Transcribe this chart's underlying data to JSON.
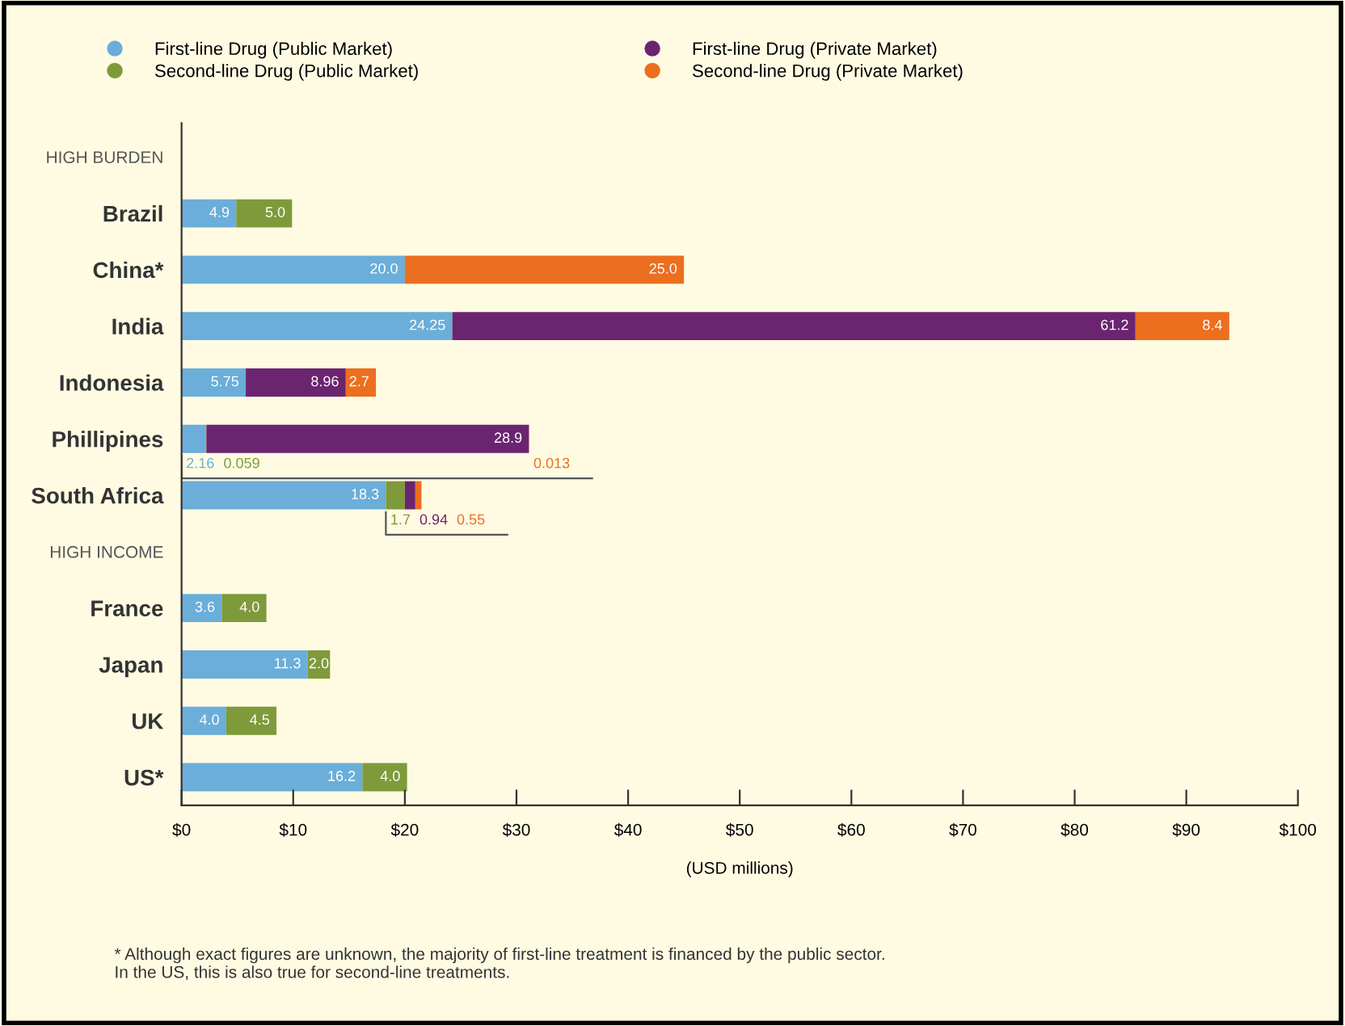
{
  "chart_data": {
    "type": "bar",
    "orientation": "horizontal",
    "stacked": true,
    "categories": [
      "HIGH BURDEN",
      "Brazil",
      "China*",
      "India",
      "Indonesia",
      "Phillipines",
      "South Africa",
      "HIGH INCOME",
      "France",
      "Japan",
      "UK",
      "US*"
    ],
    "series": [
      {
        "name": "First-line Drug (Public Market)",
        "color": "#6aaed9",
        "values": [
          null,
          4.9,
          20.0,
          24.25,
          5.75,
          2.16,
          18.3,
          null,
          3.6,
          11.3,
          4.0,
          16.2
        ],
        "value_labels": [
          null,
          "4.9",
          "20.0",
          "24.25",
          "5.75",
          "2.16",
          "18.3",
          null,
          "3.6",
          "11.3",
          "4.0",
          "16.2"
        ]
      },
      {
        "name": "Second-line Drug (Public Market)",
        "color": "#7f9a3a",
        "values": [
          null,
          5.0,
          null,
          null,
          null,
          0.059,
          1.7,
          null,
          4.0,
          2.0,
          4.5,
          4.0
        ],
        "value_labels": [
          null,
          "5.0",
          null,
          null,
          null,
          "0.059",
          "1.7",
          null,
          "4.0",
          "2.0",
          "4.5",
          "4.0"
        ]
      },
      {
        "name": "First-line Drug (Private Market)",
        "color": "#6b2570",
        "values": [
          null,
          null,
          null,
          61.2,
          8.96,
          28.9,
          0.94,
          null,
          null,
          null,
          null,
          null
        ],
        "value_labels": [
          null,
          null,
          null,
          "61.2",
          "8.96",
          "28.9",
          "0.94",
          null,
          null,
          null,
          null,
          null
        ]
      },
      {
        "name": "Second-line Drug (Private Market)",
        "color": "#ec6e1f",
        "values": [
          null,
          null,
          25.0,
          8.4,
          2.7,
          0.013,
          0.55,
          null,
          null,
          null,
          null,
          null
        ],
        "value_labels": [
          null,
          null,
          "25.0",
          "8.4",
          "2.7",
          "0.013",
          "0.55",
          null,
          null,
          null,
          null,
          null
        ]
      }
    ],
    "xlim": [
      0,
      100
    ],
    "xticks": [
      {
        "value": 0,
        "label": "$0"
      },
      {
        "value": 10,
        "label": "$10"
      },
      {
        "value": 20,
        "label": "$20"
      },
      {
        "value": 30,
        "label": "$30"
      },
      {
        "value": 40,
        "label": "$40"
      },
      {
        "value": 50,
        "label": "$50"
      },
      {
        "value": 60,
        "label": "$60"
      },
      {
        "value": 70,
        "label": "$70"
      },
      {
        "value": 80,
        "label": "$80"
      },
      {
        "value": 90,
        "label": "$90"
      },
      {
        "value": 100,
        "label": "$100"
      }
    ],
    "xlabel": "(USD millions)",
    "legend": "top",
    "grid": false,
    "annotations": [
      "* Although exact figures are unknown, the majority of first-line treatment is financed by the public sector.\nIn the US, this is also true for second-line treatments."
    ]
  }
}
